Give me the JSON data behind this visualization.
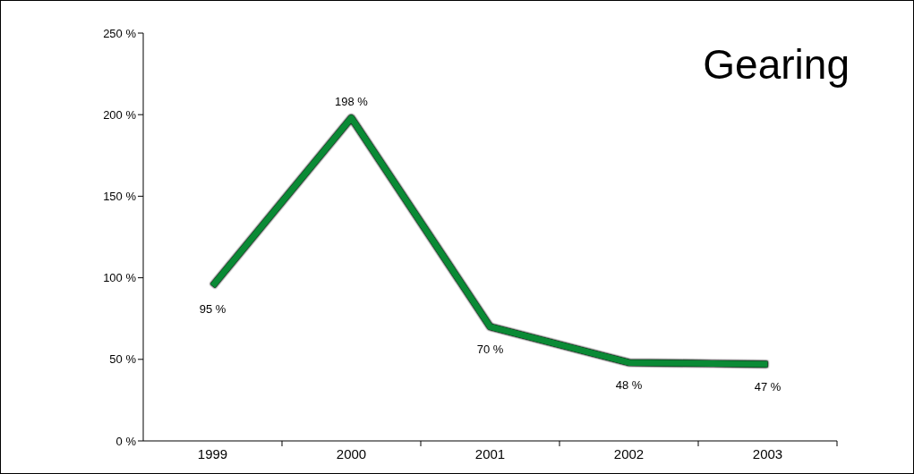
{
  "chart_data": {
    "type": "line",
    "title": "Gearing",
    "categories": [
      "1999",
      "2000",
      "2001",
      "2002",
      "2003"
    ],
    "series": [
      {
        "color": "#0a8a35",
        "values": [
          95,
          198,
          70,
          48,
          47
        ]
      }
    ],
    "value_labels": [
      "95 %",
      "198 %",
      "70 %",
      "48 %",
      "47 %"
    ],
    "ylim": [
      0,
      250
    ],
    "yticks": [
      {
        "value": 0,
        "label": "0 %"
      },
      {
        "value": 50,
        "label": "50 %"
      },
      {
        "value": 100,
        "label": "100 %"
      },
      {
        "value": 150,
        "label": "150 %"
      },
      {
        "value": 200,
        "label": "200 %"
      },
      {
        "value": 250,
        "label": "250 %"
      }
    ],
    "marker": "none",
    "line_style": "solid"
  }
}
